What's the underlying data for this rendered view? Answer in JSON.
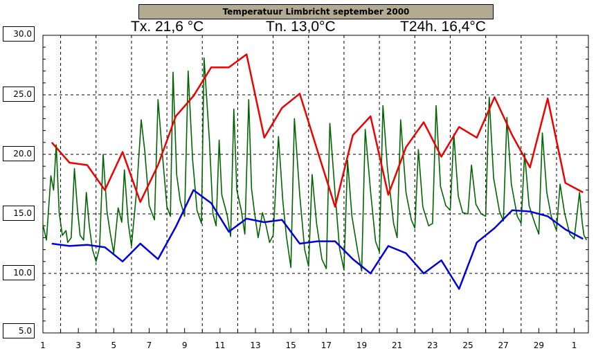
{
  "chart_data": {
    "type": "line",
    "title": "Temperatuur Limbricht september 2000",
    "stats": {
      "tx": "Tx. 21,6 °C",
      "tn": "Tn. 13,0°C",
      "t24": "T24h. 16,4°C"
    },
    "ylim": [
      5.0,
      30.0
    ],
    "xlim": [
      1,
      31.8
    ],
    "y_tick_labels": [
      "30.0",
      "25.0",
      "20.0",
      "15.0",
      "10.0",
      "5.0"
    ],
    "x_tick_labels": [
      "1",
      "3",
      "5",
      "7",
      "9",
      "11",
      "13",
      "15",
      "17",
      "19",
      "21",
      "23",
      "25",
      "27",
      "29",
      "1"
    ],
    "grid": true,
    "colors": {
      "max": "#ee0000",
      "min": "#0000dd",
      "temp": "#006400",
      "title_bg": "#b3ab91"
    },
    "series": [
      {
        "key": "max",
        "x": [
          1.5,
          2.5,
          3.5,
          4.5,
          5.5,
          6.5,
          7.5,
          8.5,
          9.5,
          10.5,
          11.5,
          12.5,
          13.5,
          14.5,
          15.5,
          16.5,
          17.5,
          18.5,
          19.5,
          20.5,
          21.5,
          22.5,
          23.5,
          24.5,
          25.5,
          26.5,
          27.5,
          28.5,
          29.5,
          30.5,
          31.5
        ],
        "values": [
          21.0,
          19.3,
          19.1,
          17.0,
          20.2,
          16.0,
          19.1,
          23.2,
          24.9,
          27.3,
          27.3,
          28.4,
          21.4,
          23.9,
          25.1,
          20.3,
          15.6,
          21.6,
          23.2,
          16.6,
          20.6,
          22.7,
          19.8,
          22.3,
          21.4,
          24.8,
          21.6,
          18.9,
          24.7,
          17.6,
          16.8
        ]
      },
      {
        "key": "min",
        "x": [
          1.5,
          2.5,
          3.5,
          4.5,
          5.5,
          6.5,
          7.5,
          8.5,
          9.5,
          10.5,
          11.5,
          12.5,
          13.5,
          14.5,
          15.5,
          16.5,
          17.5,
          18.5,
          19.5,
          20.5,
          21.5,
          22.5,
          23.5,
          24.5,
          25.5,
          26.5,
          27.5,
          28.5,
          29.5,
          30.5,
          31.5
        ],
        "values": [
          12.5,
          12.3,
          12.4,
          12.2,
          11.0,
          12.5,
          11.2,
          13.9,
          17.0,
          15.9,
          13.5,
          14.6,
          14.3,
          14.5,
          12.5,
          12.7,
          12.7,
          11.2,
          10.0,
          12.3,
          11.7,
          10.0,
          11.1,
          8.7,
          12.6,
          13.8,
          15.3,
          15.2,
          14.8,
          13.7,
          12.9
        ]
      },
      {
        "key": "temp",
        "x": [
          1.0,
          1.2,
          1.45,
          1.6,
          1.75,
          1.92,
          2.1,
          2.3,
          2.4,
          2.6,
          2.78,
          2.95,
          3.1,
          3.3,
          3.45,
          3.62,
          3.8,
          4.0,
          4.2,
          4.4,
          4.62,
          4.8,
          5.0,
          5.25,
          5.45,
          5.6,
          5.82,
          6.0,
          6.3,
          6.55,
          6.75,
          7.0,
          7.3,
          7.5,
          7.72,
          8.0,
          8.2,
          8.35,
          8.55,
          8.75,
          9.0,
          9.2,
          9.45,
          9.7,
          9.95,
          10.1,
          10.4,
          10.6,
          10.78,
          10.95,
          11.1,
          11.4,
          11.6,
          11.78,
          11.95,
          12.2,
          12.4,
          12.62,
          12.78,
          12.95,
          13.15,
          13.4,
          13.6,
          13.8,
          14.0,
          14.3,
          14.55,
          14.75,
          15.0,
          15.2,
          15.5,
          15.78,
          16.0,
          16.2,
          16.45,
          16.75,
          17.0,
          17.2,
          17.5,
          17.75,
          18.0,
          18.2,
          18.45,
          18.78,
          19.0,
          19.2,
          19.5,
          19.78,
          20.0,
          20.2,
          20.45,
          20.8,
          21.0,
          21.2,
          21.5,
          21.8,
          22.0,
          22.2,
          22.45,
          22.78,
          23.0,
          23.2,
          23.45,
          23.75,
          24.0,
          24.2,
          24.45,
          24.7,
          25.0,
          25.2,
          25.45,
          25.75,
          26.0,
          26.2,
          26.45,
          26.78,
          27.0,
          27.2,
          27.45,
          27.78,
          28.0,
          28.2,
          28.45,
          28.78,
          29.0,
          29.2,
          29.45,
          29.7,
          30.0,
          30.2,
          30.45,
          30.75,
          31.0,
          31.3,
          31.45,
          31.55,
          31.7
        ],
        "values": [
          14.1,
          12.8,
          18.2,
          17.0,
          20.8,
          15.1,
          13.2,
          13.6,
          12.6,
          13.0,
          18.8,
          15.4,
          13.2,
          12.8,
          16.8,
          14.0,
          12.0,
          11.0,
          12.2,
          20.0,
          15.2,
          13.4,
          11.7,
          15.5,
          14.3,
          18.7,
          14.2,
          12.3,
          17.1,
          22.9,
          20.3,
          15.7,
          14.5,
          24.6,
          20.5,
          15.6,
          14.8,
          26.9,
          18.3,
          16.1,
          14.8,
          27.0,
          19.6,
          15.3,
          14.2,
          28.1,
          21.2,
          15.0,
          14.0,
          21.2,
          16.6,
          14.9,
          13.1,
          23.8,
          17.0,
          15.3,
          13.3,
          24.6,
          17.1,
          15.1,
          13.0,
          15.1,
          14.0,
          12.6,
          13.2,
          21.5,
          16.0,
          13.1,
          10.5,
          23.0,
          16.6,
          12.0,
          10.6,
          18.3,
          14.2,
          11.2,
          10.4,
          22.6,
          16.7,
          12.1,
          10.3,
          19.5,
          14.8,
          11.8,
          10.2,
          22.1,
          16.9,
          12.7,
          11.8,
          24.1,
          18.9,
          14.2,
          13.0,
          22.9,
          16.8,
          14.5,
          13.8,
          20.4,
          15.6,
          14.0,
          14.2,
          24.1,
          17.3,
          15.7,
          15.3,
          21.7,
          16.5,
          15.1,
          15.0,
          19.1,
          15.8,
          15.0,
          14.8,
          24.8,
          18.0,
          15.2,
          14.4,
          23.1,
          17.5,
          14.8,
          14.2,
          20.1,
          15.7,
          14.2,
          13.3,
          21.8,
          16.8,
          14.8,
          13.6,
          17.5,
          15.1,
          13.3,
          12.9,
          16.8,
          14.3,
          13.2,
          12.8
        ]
      }
    ]
  }
}
